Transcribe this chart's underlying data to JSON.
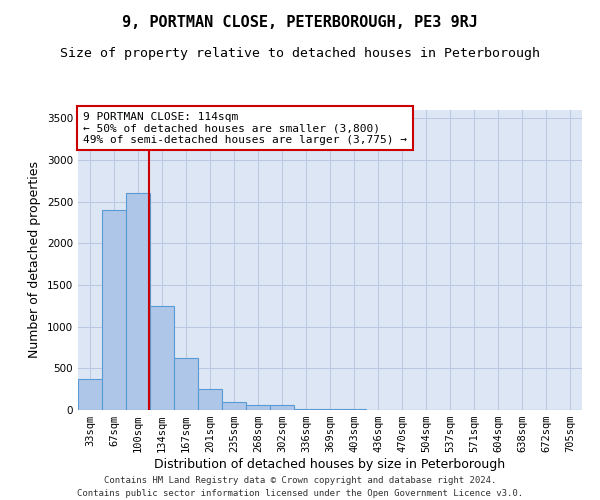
{
  "title": "9, PORTMAN CLOSE, PETERBOROUGH, PE3 9RJ",
  "subtitle": "Size of property relative to detached houses in Peterborough",
  "xlabel": "Distribution of detached houses by size in Peterborough",
  "ylabel": "Number of detached properties",
  "footnote1": "Contains HM Land Registry data © Crown copyright and database right 2024.",
  "footnote2": "Contains public sector information licensed under the Open Government Licence v3.0.",
  "categories": [
    "33sqm",
    "67sqm",
    "100sqm",
    "134sqm",
    "167sqm",
    "201sqm",
    "235sqm",
    "268sqm",
    "302sqm",
    "336sqm",
    "369sqm",
    "403sqm",
    "436sqm",
    "470sqm",
    "504sqm",
    "537sqm",
    "571sqm",
    "604sqm",
    "638sqm",
    "672sqm",
    "705sqm"
  ],
  "values": [
    375,
    2400,
    2600,
    1250,
    625,
    250,
    100,
    55,
    55,
    10,
    10,
    10,
    0,
    0,
    0,
    0,
    0,
    0,
    0,
    0,
    0
  ],
  "bar_color": "#aec6e8",
  "bar_edge_color": "#5b9bd5",
  "ylim": [
    0,
    3600
  ],
  "yticks": [
    0,
    500,
    1000,
    1500,
    2000,
    2500,
    3000,
    3500
  ],
  "property_line_x": 2.45,
  "property_line_color": "#cc0000",
  "annotation_text": "9 PORTMAN CLOSE: 114sqm\n← 50% of detached houses are smaller (3,800)\n49% of semi-detached houses are larger (3,775) →",
  "annotation_box_color": "#cc0000",
  "annotation_text_color": "#000000",
  "background_color": "#ffffff",
  "plot_bg_color": "#dce6f5",
  "grid_color": "#b8c8e0",
  "title_fontsize": 11,
  "subtitle_fontsize": 9.5,
  "axis_label_fontsize": 9,
  "tick_fontsize": 7.5,
  "annotation_fontsize": 8,
  "footnote_fontsize": 6.5
}
